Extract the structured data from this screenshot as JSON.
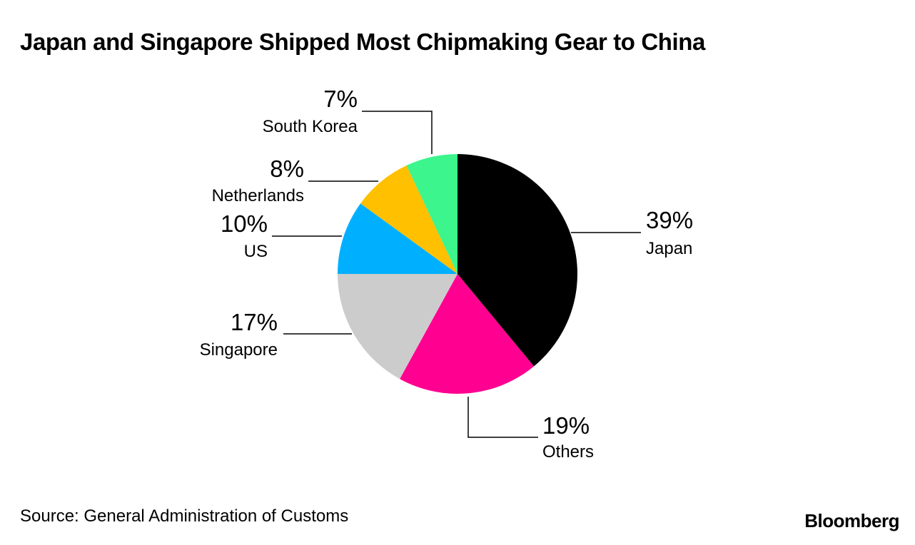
{
  "title": "Japan and Singapore Shipped Most Chipmaking Gear to China",
  "source": "Source: General Administration of Customs",
  "brand": "Bloomberg",
  "chart_data": {
    "type": "pie",
    "title": "Japan and Singapore Shipped Most Chipmaking Gear to China",
    "slices": [
      {
        "label": "Japan",
        "value": 39,
        "value_label": "39%",
        "color": "#000000"
      },
      {
        "label": "Others",
        "value": 19,
        "value_label": "19%",
        "color": "#ff0090"
      },
      {
        "label": "Singapore",
        "value": 17,
        "value_label": "17%",
        "color": "#cccccc"
      },
      {
        "label": "US",
        "value": 10,
        "value_label": "10%",
        "color": "#00b0ff"
      },
      {
        "label": "Netherlands",
        "value": 8,
        "value_label": "8%",
        "color": "#ffc000"
      },
      {
        "label": "South Korea",
        "value": 7,
        "value_label": "7%",
        "color": "#3cf58c"
      }
    ],
    "direction": "clockwise from 12 o'clock",
    "legend": "none (direct labels)"
  }
}
